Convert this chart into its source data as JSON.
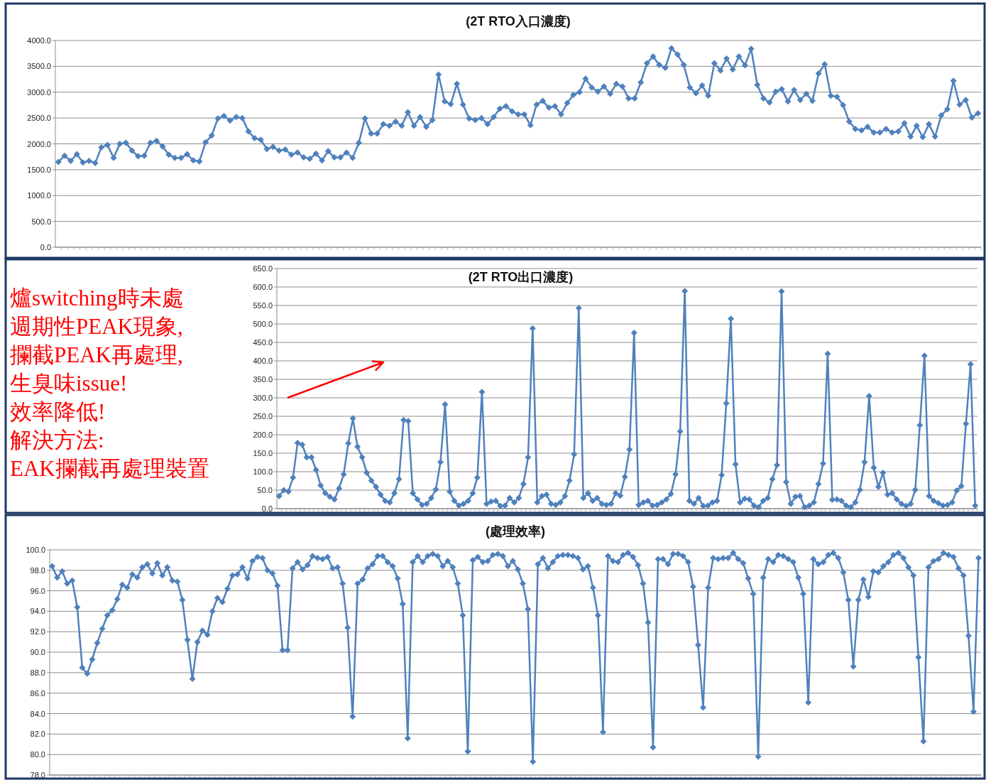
{
  "chart_data": [
    {
      "type": "line",
      "title": "(2T RTO入口濃度)",
      "marker": "diamond",
      "grid": "y",
      "tick_labels": "y",
      "ylim": [
        0,
        4000
      ],
      "yticks": [
        {
          "value": 0,
          "label": "0.0"
        },
        {
          "value": 500,
          "label": "500.0"
        },
        {
          "value": 1000,
          "label": "1000.0"
        },
        {
          "value": 1500,
          "label": "1500.0"
        },
        {
          "value": 2000,
          "label": "2000.0"
        },
        {
          "value": 2500,
          "label": "2500.0"
        },
        {
          "value": 3000,
          "label": "3000.0"
        },
        {
          "value": 3500,
          "label": "3500.0"
        },
        {
          "value": 4000,
          "label": "4000.0"
        }
      ],
      "categories": [
        null,
        null,
        null,
        null,
        null,
        null,
        null,
        null,
        null,
        null,
        null,
        null,
        null,
        null,
        null,
        null,
        null,
        null,
        null,
        null,
        null,
        null,
        null,
        null,
        null,
        null,
        null,
        null,
        null,
        null,
        null,
        null,
        null,
        null,
        null,
        null,
        null,
        null,
        null,
        null,
        null,
        null,
        null,
        null,
        null,
        null,
        null,
        null,
        null,
        null,
        null,
        null,
        null,
        null,
        null,
        null,
        null,
        null,
        null,
        null,
        null,
        null,
        null,
        null,
        null,
        null,
        null,
        null,
        null,
        null,
        null,
        null,
        null,
        null,
        null,
        null,
        null,
        null,
        null,
        null,
        null,
        null,
        null,
        null,
        null,
        null,
        null,
        null,
        null,
        null,
        null,
        null,
        null,
        null,
        null,
        null,
        null,
        null,
        null,
        null,
        null,
        null,
        null,
        null,
        null,
        null,
        null,
        null,
        null,
        null,
        null,
        null,
        null,
        null,
        null,
        null,
        null,
        null,
        null,
        null,
        null,
        null,
        null,
        null,
        null,
        null,
        null,
        null,
        null,
        null,
        null,
        null,
        null,
        null,
        null,
        null,
        null,
        null,
        null,
        null,
        null,
        null,
        null,
        null,
        null,
        null,
        null,
        null,
        null,
        null,
        null
      ],
      "series": [
        {
          "color": "#4f81bd",
          "values": [
            1650,
            1770,
            1670,
            1800,
            1640,
            1670,
            1630,
            1930,
            1980,
            1730,
            2000,
            2020,
            1870,
            1760,
            1770,
            2020,
            2060,
            1950,
            1790,
            1730,
            1730,
            1800,
            1680,
            1660,
            2030,
            2160,
            2490,
            2540,
            2450,
            2520,
            2500,
            2240,
            2110,
            2080,
            1900,
            1940,
            1870,
            1890,
            1790,
            1830,
            1740,
            1710,
            1810,
            1680,
            1860,
            1740,
            1740,
            1830,
            1730,
            2020,
            2490,
            2200,
            2200,
            2380,
            2350,
            2430,
            2350,
            2610,
            2350,
            2520,
            2330,
            2460,
            3340,
            2820,
            2770,
            3160,
            2760,
            2490,
            2460,
            2500,
            2380,
            2520,
            2680,
            2730,
            2630,
            2570,
            2570,
            2360,
            2760,
            2830,
            2700,
            2730,
            2570,
            2790,
            2950,
            3000,
            3260,
            3090,
            3010,
            3110,
            2970,
            3160,
            3110,
            2880,
            2880,
            3190,
            3560,
            3690,
            3530,
            3470,
            3850,
            3730,
            3530,
            3090,
            2980,
            3130,
            2930,
            3560,
            3420,
            3650,
            3440,
            3690,
            3520,
            3840,
            3140,
            2880,
            2800,
            3010,
            3060,
            2820,
            3040,
            2850,
            2970,
            2830,
            3360,
            3540,
            2930,
            2910,
            2750,
            2430,
            2290,
            2260,
            2330,
            2220,
            2220,
            2290,
            2220,
            2240,
            2400,
            2140,
            2350,
            2130,
            2380,
            2140,
            2550,
            2670,
            3220,
            2760,
            2850,
            2510,
            2590
          ]
        }
      ]
    },
    {
      "type": "line",
      "title": "(2T RTO出口濃度)",
      "marker": "diamond",
      "grid": "y",
      "tick_labels": "y",
      "ylim": [
        0,
        650
      ],
      "yticks": [
        {
          "value": 0,
          "label": "0.0"
        },
        {
          "value": 50,
          "label": "50.0"
        },
        {
          "value": 100,
          "label": "100.0"
        },
        {
          "value": 150,
          "label": "150.0"
        },
        {
          "value": 200,
          "label": "200.0"
        },
        {
          "value": 250,
          "label": "250.0"
        },
        {
          "value": 300,
          "label": "300.0"
        },
        {
          "value": 350,
          "label": "350.0"
        },
        {
          "value": 400,
          "label": "400.0"
        },
        {
          "value": 450,
          "label": "450.0"
        },
        {
          "value": 500,
          "label": "500.0"
        },
        {
          "value": 550,
          "label": "550.0"
        },
        {
          "value": 600,
          "label": "600.0"
        },
        {
          "value": 650,
          "label": "650.0"
        }
      ],
      "annotations": [
        "爐switching時未處",
        "週期性PEAK現象,",
        "攔截PEAK再處理,",
        "生臭味issue!",
        "效率降低!",
        "解決方法:",
        "EAK攔截再處理裝置"
      ],
      "categories": [
        null,
        null,
        null,
        null,
        null,
        null,
        null,
        null,
        null,
        null,
        null,
        null,
        null,
        null,
        null,
        null,
        null,
        null,
        null,
        null,
        null,
        null,
        null,
        null,
        null,
        null,
        null,
        null,
        null,
        null,
        null,
        null,
        null,
        null,
        null,
        null,
        null,
        null,
        null,
        null,
        null,
        null,
        null,
        null,
        null,
        null,
        null,
        null,
        null,
        null,
        null,
        null,
        null,
        null,
        null,
        null,
        null,
        null,
        null,
        null,
        null,
        null,
        null,
        null,
        null,
        null,
        null,
        null,
        null,
        null,
        null,
        null,
        null,
        null,
        null,
        null,
        null,
        null,
        null,
        null,
        null,
        null,
        null,
        null,
        null,
        null,
        null,
        null,
        null,
        null,
        null,
        null,
        null,
        null,
        null,
        null,
        null,
        null,
        null,
        null,
        null,
        null,
        null,
        null,
        null,
        null,
        null,
        null,
        null,
        null,
        null,
        null,
        null,
        null,
        null,
        null,
        null,
        null,
        null,
        null,
        null,
        null,
        null,
        null,
        null,
        null,
        null,
        null,
        null,
        null,
        null,
        null,
        null,
        null,
        null,
        null,
        null,
        null,
        null,
        null,
        null,
        null,
        null,
        null,
        null,
        null,
        null,
        null,
        null,
        null,
        null,
        null
      ],
      "series": [
        {
          "color": "#4f81bd",
          "values": [
            34,
            50,
            46,
            84,
            178,
            173,
            139,
            139,
            105,
            63,
            42,
            32,
            25,
            55,
            93,
            177,
            244,
            168,
            139,
            97,
            76,
            59,
            38,
            21,
            17,
            42,
            80,
            240,
            237,
            42,
            25,
            10,
            13,
            29,
            52,
            126,
            282,
            46,
            21,
            8,
            13,
            21,
            42,
            84,
            316,
            13,
            19,
            21,
            7,
            8,
            29,
            17,
            29,
            67,
            139,
            488,
            17,
            34,
            38,
            13,
            10,
            17,
            34,
            76,
            147,
            543,
            29,
            42,
            21,
            29,
            13,
            10,
            13,
            42,
            35,
            86,
            160,
            476,
            10,
            17,
            21,
            8,
            10,
            17,
            25,
            40,
            93,
            209,
            589,
            21,
            13,
            29,
            7,
            8,
            17,
            21,
            91,
            285,
            514,
            120,
            17,
            27,
            25,
            8,
            4,
            21,
            29,
            80,
            118,
            588,
            72,
            13,
            32,
            34,
            4,
            8,
            17,
            67,
            122,
            419,
            24,
            25,
            21,
            8,
            4,
            17,
            51,
            126,
            305,
            111,
            59,
            97,
            38,
            42,
            25,
            13,
            7,
            13,
            51,
            226,
            414,
            34,
            21,
            15,
            8,
            10,
            17,
            49,
            61,
            230,
            391,
            8
          ]
        }
      ]
    },
    {
      "type": "line",
      "title": "(處理效率)",
      "marker": "diamond",
      "grid": "y",
      "tick_labels": "y",
      "ylim": [
        78,
        100
      ],
      "yticks": [
        {
          "value": 78,
          "label": "78.0"
        },
        {
          "value": 80,
          "label": "80.0"
        },
        {
          "value": 82,
          "label": "82.0"
        },
        {
          "value": 84,
          "label": "84.0"
        },
        {
          "value": 86,
          "label": "86.0"
        },
        {
          "value": 88,
          "label": "88.0"
        },
        {
          "value": 90,
          "label": "90.0"
        },
        {
          "value": 92,
          "label": "92.0"
        },
        {
          "value": 94,
          "label": "94.0"
        },
        {
          "value": 96,
          "label": "96.0"
        },
        {
          "value": 98,
          "label": "98.0"
        },
        {
          "value": 100,
          "label": "100.0"
        }
      ],
      "categories": [
        null,
        null,
        null,
        null,
        null,
        null,
        null,
        null,
        null,
        null,
        null,
        null,
        null,
        null,
        null,
        null,
        null,
        null,
        null,
        null,
        null,
        null,
        null,
        null,
        null,
        null,
        null,
        null,
        null,
        null,
        null,
        null,
        null,
        null,
        null,
        null,
        null,
        null,
        null,
        null,
        null,
        null,
        null,
        null,
        null,
        null,
        null,
        null,
        null,
        null,
        null,
        null,
        null,
        null,
        null,
        null,
        null,
        null,
        null,
        null,
        null,
        null,
        null,
        null,
        null,
        null,
        null,
        null,
        null,
        null,
        null,
        null,
        null,
        null,
        null,
        null,
        null,
        null,
        null,
        null,
        null,
        null,
        null,
        null,
        null,
        null,
        null,
        null,
        null,
        null,
        null,
        null,
        null,
        null,
        null,
        null,
        null,
        null,
        null,
        null,
        null,
        null,
        null,
        null,
        null,
        null,
        null,
        null,
        null,
        null,
        null,
        null,
        null,
        null,
        null,
        null,
        null,
        null,
        null,
        null,
        null,
        null,
        null,
        null,
        null,
        null,
        null,
        null,
        null,
        null,
        null,
        null,
        null,
        null,
        null,
        null,
        null,
        null,
        null,
        null,
        null,
        null,
        null,
        null,
        null,
        null,
        null,
        null,
        null,
        null,
        null,
        null,
        null,
        null,
        null,
        null,
        null,
        null,
        null,
        null,
        null,
        null,
        null,
        null,
        null,
        null,
        null,
        null,
        null,
        null,
        null,
        null,
        null,
        null,
        null,
        null,
        null,
        null,
        null,
        null,
        null,
        null,
        null,
        null,
        null,
        null
      ],
      "series": [
        {
          "color": "#4f81bd",
          "values": [
            98.4,
            97.3,
            97.9,
            96.7,
            97.0,
            94.4,
            88.5,
            87.9,
            89.3,
            90.9,
            92.3,
            93.6,
            94.1,
            95.2,
            96.6,
            96.3,
            97.6,
            97.3,
            98.3,
            98.6,
            97.7,
            98.7,
            97.5,
            98.3,
            97.0,
            96.9,
            95.1,
            91.2,
            87.4,
            91.0,
            92.1,
            91.7,
            94.0,
            95.3,
            94.9,
            96.2,
            97.5,
            97.6,
            98.3,
            97.2,
            98.9,
            99.3,
            99.2,
            98.0,
            97.7,
            96.5,
            90.2,
            90.2,
            98.2,
            98.8,
            98.1,
            98.5,
            99.4,
            99.2,
            99.1,
            99.3,
            98.2,
            98.3,
            96.7,
            92.4,
            83.7,
            96.7,
            97.1,
            98.2,
            98.6,
            99.4,
            99.4,
            98.8,
            98.4,
            97.2,
            94.7,
            81.6,
            98.8,
            99.4,
            98.8,
            99.4,
            99.6,
            99.4,
            98.4,
            98.9,
            98.3,
            96.7,
            93.6,
            80.3,
            99.0,
            99.3,
            98.8,
            98.9,
            99.5,
            99.6,
            99.4,
            98.4,
            98.9,
            98.1,
            96.7,
            94.2,
            79.3,
            98.6,
            99.2,
            98.2,
            98.8,
            99.4,
            99.5,
            99.5,
            99.4,
            99.2,
            98.1,
            98.4,
            96.3,
            93.6,
            82.2,
            99.4,
            98.9,
            98.8,
            99.5,
            99.7,
            99.3,
            98.5,
            96.7,
            92.9,
            80.7,
            99.1,
            99.1,
            98.6,
            99.6,
            99.6,
            99.4,
            98.8,
            96.4,
            90.7,
            84.6,
            96.3,
            99.2,
            99.1,
            99.2,
            99.2,
            99.7,
            99.1,
            98.7,
            97.2,
            95.7,
            79.8,
            97.3,
            99.1,
            98.8,
            99.5,
            99.4,
            99.1,
            98.8,
            97.3,
            95.7,
            85.1,
            99.1,
            98.6,
            98.8,
            99.5,
            99.7,
            99.2,
            97.8,
            95.1,
            88.6,
            95.1,
            97.1,
            95.4,
            97.9,
            97.8,
            98.4,
            98.8,
            99.5,
            99.7,
            99.2,
            98.3,
            97.5,
            89.5,
            81.3,
            98.3,
            98.9,
            99.1,
            99.7,
            99.5,
            99.3,
            98.2,
            97.5,
            91.6,
            84.2,
            99.2
          ]
        }
      ]
    }
  ]
}
